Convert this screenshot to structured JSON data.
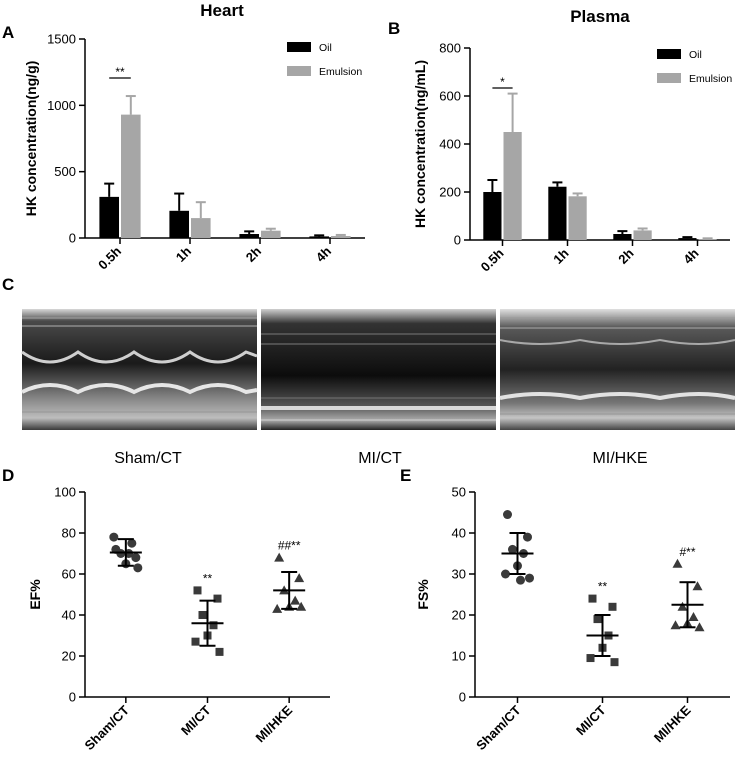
{
  "panel_labels": {
    "A": "A",
    "B": "B",
    "C": "C",
    "D": "D",
    "E": "E"
  },
  "echo_captions": [
    "Sham/CT",
    "MI/CT",
    "MI/HKE"
  ],
  "colors": {
    "oil": "#000000",
    "emulsion": "#a6a6a6",
    "axis": "#000000"
  },
  "chart_data": [
    {
      "id": "A",
      "type": "bar",
      "title": "Heart",
      "ylabel": "HK concentration(ng/g)",
      "xlabel": "",
      "categories": [
        "0.5h",
        "1h",
        "2h",
        "4h"
      ],
      "ylim": [
        0,
        1500
      ],
      "yticks": [
        0,
        500,
        1000,
        1500
      ],
      "legend_position": "top-right",
      "series": [
        {
          "name": "Oil",
          "values": [
            310,
            205,
            30,
            12
          ],
          "errors": [
            100,
            130,
            20,
            8
          ]
        },
        {
          "name": "Emulsion",
          "values": [
            930,
            150,
            55,
            15
          ],
          "errors": [
            140,
            120,
            15,
            8
          ]
        }
      ],
      "annotations": [
        {
          "text": "**",
          "category": "0.5h"
        }
      ]
    },
    {
      "id": "B",
      "type": "bar",
      "title": "Plasma",
      "ylabel": "HK concentration(ng/mL)",
      "xlabel": "",
      "categories": [
        "0.5h",
        "1h",
        "2h",
        "4h"
      ],
      "ylim": [
        0,
        800
      ],
      "yticks": [
        0,
        200,
        400,
        600,
        800
      ],
      "legend_position": "top-right",
      "series": [
        {
          "name": "Oil",
          "values": [
            200,
            222,
            25,
            8
          ],
          "errors": [
            50,
            18,
            12,
            4
          ]
        },
        {
          "name": "Emulsion",
          "values": [
            450,
            182,
            40,
            4
          ],
          "errors": [
            160,
            12,
            8,
            3
          ]
        }
      ],
      "annotations": [
        {
          "text": "*",
          "category": "0.5h"
        }
      ]
    },
    {
      "id": "D",
      "type": "scatter",
      "ylabel": "EF%",
      "xlabel": "",
      "categories": [
        "Sham/CT",
        "MI/CT",
        "MI/HKE"
      ],
      "ylim": [
        0,
        100
      ],
      "yticks": [
        0,
        20,
        40,
        60,
        80,
        100
      ],
      "groups": [
        {
          "name": "Sham/CT",
          "marker": "circle",
          "points": [
            72,
            68,
            70,
            75,
            65,
            78,
            63,
            70
          ],
          "mean": 70.5,
          "sd": 6.5,
          "label": ""
        },
        {
          "name": "MI/CT",
          "marker": "square",
          "points": [
            52,
            48,
            40,
            35,
            30,
            27,
            22
          ],
          "mean": 36,
          "sd": 11,
          "label": "**"
        },
        {
          "name": "MI/HKE",
          "marker": "triangle",
          "points": [
            68,
            58,
            52,
            47,
            44,
            43,
            44
          ],
          "mean": 52,
          "sd": 9,
          "label": "##**"
        }
      ]
    },
    {
      "id": "E",
      "type": "scatter",
      "ylabel": "FS%",
      "xlabel": "",
      "categories": [
        "Sham/CT",
        "MI/CT",
        "MI/HKE"
      ],
      "ylim": [
        0,
        50
      ],
      "yticks": [
        0,
        10,
        20,
        30,
        40,
        50
      ],
      "groups": [
        {
          "name": "Sham/CT",
          "marker": "circle",
          "points": [
            44.5,
            39,
            36,
            35,
            32,
            30,
            29,
            28.5
          ],
          "mean": 35,
          "sd": 5,
          "label": ""
        },
        {
          "name": "MI/CT",
          "marker": "square",
          "points": [
            24,
            22,
            19,
            15,
            12,
            9.5,
            8.5
          ],
          "mean": 15,
          "sd": 5,
          "label": "**"
        },
        {
          "name": "MI/HKE",
          "marker": "triangle",
          "points": [
            32.5,
            27,
            22,
            19.5,
            18,
            17.5,
            17
          ],
          "mean": 22.5,
          "sd": 5.5,
          "label": "#**"
        }
      ]
    }
  ]
}
